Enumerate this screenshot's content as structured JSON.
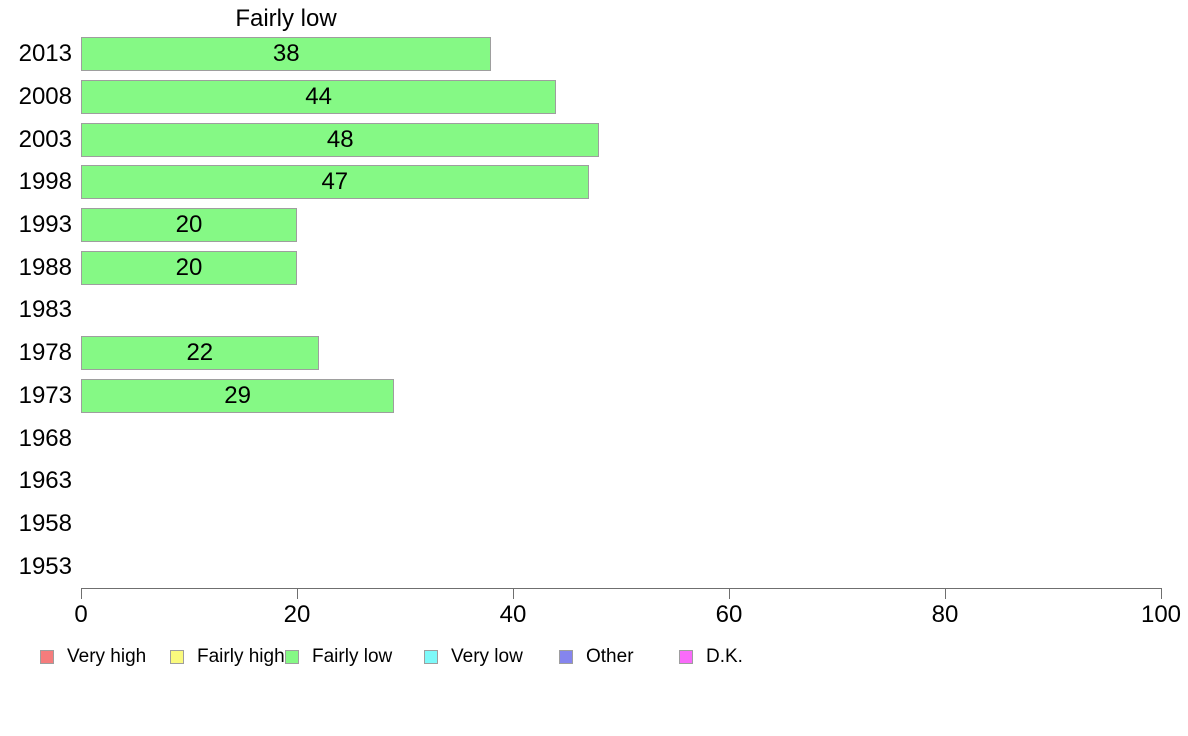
{
  "title": "Fairly low",
  "chart_data": {
    "type": "bar",
    "orientation": "horizontal",
    "title": "Fairly low",
    "categories": [
      "2013",
      "2008",
      "2003",
      "1998",
      "1993",
      "1988",
      "1983",
      "1978",
      "1973",
      "1968",
      "1963",
      "1958",
      "1953"
    ],
    "values": [
      38,
      44,
      48,
      47,
      20,
      20,
      null,
      22,
      29,
      null,
      null,
      null,
      null
    ],
    "xlabel": "",
    "ylabel": "",
    "xlim": [
      0,
      100
    ],
    "xticks": [
      0,
      20,
      40,
      60,
      80,
      100
    ],
    "grid": false,
    "bar_color": "#85F985",
    "bar_border_color": "#9e9e9e",
    "value_labels_inside_bars": true,
    "legend_position": "bottom"
  },
  "legend": {
    "items": [
      {
        "label": "Very high",
        "color": "#F57C7C"
      },
      {
        "label": "Fairly high",
        "color": "#FAFA7D"
      },
      {
        "label": "Fairly low",
        "color": "#85F985"
      },
      {
        "label": "Very low",
        "color": "#7DF9F9"
      },
      {
        "label": "Other",
        "color": "#8585EE"
      },
      {
        "label": "D.K.",
        "color": "#F96BF9"
      }
    ]
  }
}
